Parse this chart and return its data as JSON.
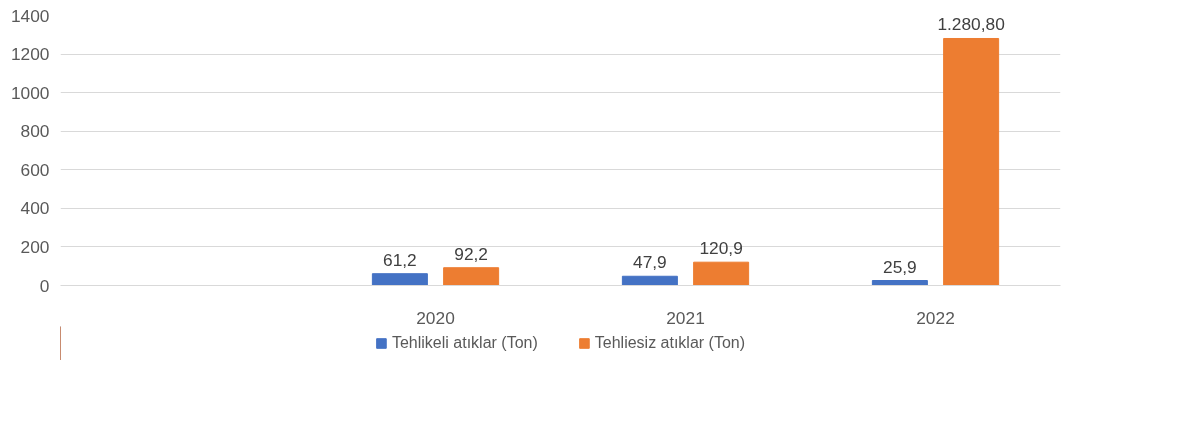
{
  "chart_data": {
    "type": "bar",
    "categories": [
      null,
      "2020",
      "2021",
      "2022"
    ],
    "series": [
      {
        "name": "Tehlikeli atıklar (Ton)",
        "color": "#4472c4",
        "values": [
          null,
          61.2,
          47.9,
          25.9
        ],
        "value_labels": [
          null,
          "61,2",
          "47,9",
          "25,9"
        ]
      },
      {
        "name": "Tehliesiz atıklar (Ton)",
        "color": "#ed7d31",
        "values": [
          null,
          92.2,
          120.9,
          1280.8
        ],
        "value_labels": [
          null,
          "92,2",
          "120,9",
          "1.280,80"
        ]
      }
    ],
    "ylim": [
      0,
      1400
    ],
    "yticks": [
      0,
      200,
      400,
      600,
      800,
      1000,
      1200,
      1400
    ],
    "grid": "y",
    "legend": "bottom"
  }
}
